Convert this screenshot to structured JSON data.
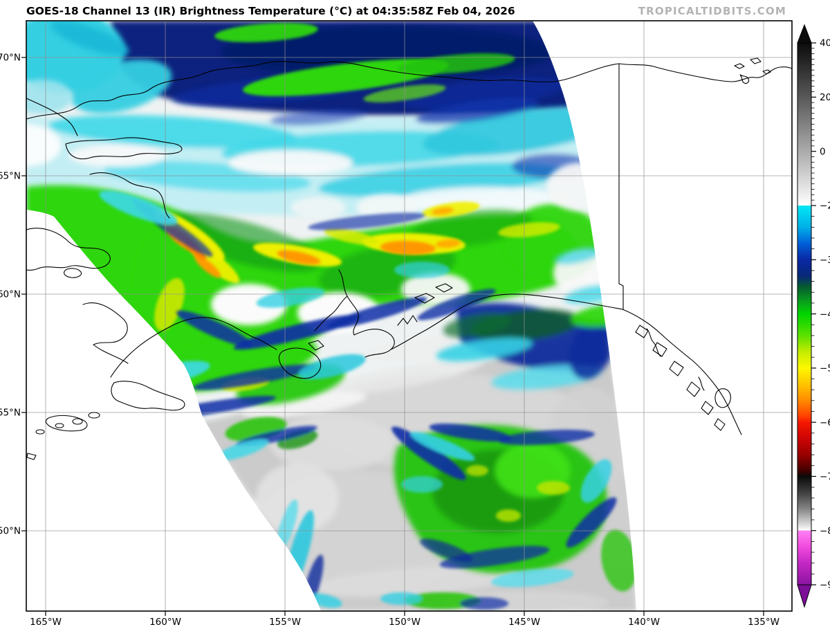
{
  "header": {
    "title": "GOES-18 Channel 13 (IR) Brightness Temperature (°C) at 04:35:58Z Feb 04, 2026",
    "watermark": "TROPICALTIDBITS.COM"
  },
  "axes": {
    "lat_labels": [
      "70°N",
      "65°N",
      "60°N",
      "55°N",
      "50°N"
    ],
    "lon_labels": [
      "165°W",
      "160°W",
      "155°W",
      "150°W",
      "145°W",
      "140°W",
      "135°W"
    ]
  },
  "colorbar": {
    "tick_labels": [
      "40",
      "20",
      "0",
      "−20",
      "−30",
      "−40",
      "−50",
      "−60",
      "−70",
      "−80",
      "−90"
    ],
    "tick_values": [
      40,
      20,
      0,
      -20,
      -30,
      -40,
      -50,
      -60,
      -70,
      -80,
      -90
    ],
    "minor_step": 2,
    "range": [
      40,
      -90
    ],
    "scale_stops": [
      {
        "t": 40,
        "c": "#0b0b0b"
      },
      {
        "t": 20,
        "c": "#585858"
      },
      {
        "t": 0,
        "c": "#ababab"
      },
      {
        "t": -19.98,
        "c": "#ffffff"
      },
      {
        "t": -20,
        "c": "#00e8f4"
      },
      {
        "t": -24,
        "c": "#00b0e8"
      },
      {
        "t": -27,
        "c": "#0060d8"
      },
      {
        "t": -30,
        "c": "#0a28a4"
      },
      {
        "t": -33,
        "c": "#082878"
      },
      {
        "t": -35,
        "c": "#055c30"
      },
      {
        "t": -38,
        "c": "#0aa61a"
      },
      {
        "t": -40,
        "c": "#00d400"
      },
      {
        "t": -44,
        "c": "#5ce000"
      },
      {
        "t": -47,
        "c": "#c4ec00"
      },
      {
        "t": -50,
        "c": "#fef800"
      },
      {
        "t": -53,
        "c": "#ffc400"
      },
      {
        "t": -56,
        "c": "#ff8a00"
      },
      {
        "t": -59,
        "c": "#ff3c00"
      },
      {
        "t": -60,
        "c": "#f51800"
      },
      {
        "t": -63,
        "c": "#cc0404"
      },
      {
        "t": -66,
        "c": "#980000"
      },
      {
        "t": -69,
        "c": "#400000"
      },
      {
        "t": -70,
        "c": "#0a0a0a"
      },
      {
        "t": -73,
        "c": "#404040"
      },
      {
        "t": -76,
        "c": "#858585"
      },
      {
        "t": -79,
        "c": "#dedede"
      },
      {
        "t": -79.98,
        "c": "#ffffff"
      },
      {
        "t": -80,
        "c": "#ff80f2"
      },
      {
        "t": -83,
        "c": "#f04ade"
      },
      {
        "t": -86,
        "c": "#c428c4"
      },
      {
        "t": -90,
        "c": "#8c14a2"
      }
    ],
    "extend_over_color": "#0b0b0b",
    "extend_under_color": "#7c0e98"
  },
  "colors": {
    "coastline": "#000000",
    "grid": "#909090",
    "no_data": "#ffffff",
    "watermark": "#b3b3b3",
    "stratus_gray": "#cbcbcb",
    "cold_band_navy": "#07207e",
    "convection_green": "#2ed609",
    "coldest_orange": "#ff9800"
  },
  "chart_data": {
    "type": "heatmap",
    "title": "GOES-18 Channel 13 (IR) Brightness Temperature (°C) at 04:35:58Z Feb 04, 2026",
    "satellite": "GOES-18",
    "channel": "Channel 13 (IR)",
    "quantity": "Brightness Temperature (°C)",
    "valid_time": "04:35:58Z Feb 04, 2026",
    "x_tick_labels": [
      "165°W",
      "160°W",
      "155°W",
      "150°W",
      "145°W",
      "140°W",
      "135°W"
    ],
    "y_tick_labels": [
      "70°N",
      "65°N",
      "60°N",
      "55°N",
      "50°N"
    ],
    "colorbar_tick_labels": [
      "40",
      "20",
      "0",
      "−20",
      "−30",
      "−40",
      "−50",
      "−60",
      "−70",
      "−80",
      "−90"
    ],
    "colorbar_range_c": [
      40,
      -90
    ],
    "grid": true,
    "legend_position": "right",
    "notes": "IR satellite sector over Alaska and Gulf of Alaska; diagonal scan-edge no-data regions lower-left and right; cold navy band along north, bright green/yellow/orange frontal band across center, gray stratus over Gulf, green convective comma at bottom center."
  }
}
